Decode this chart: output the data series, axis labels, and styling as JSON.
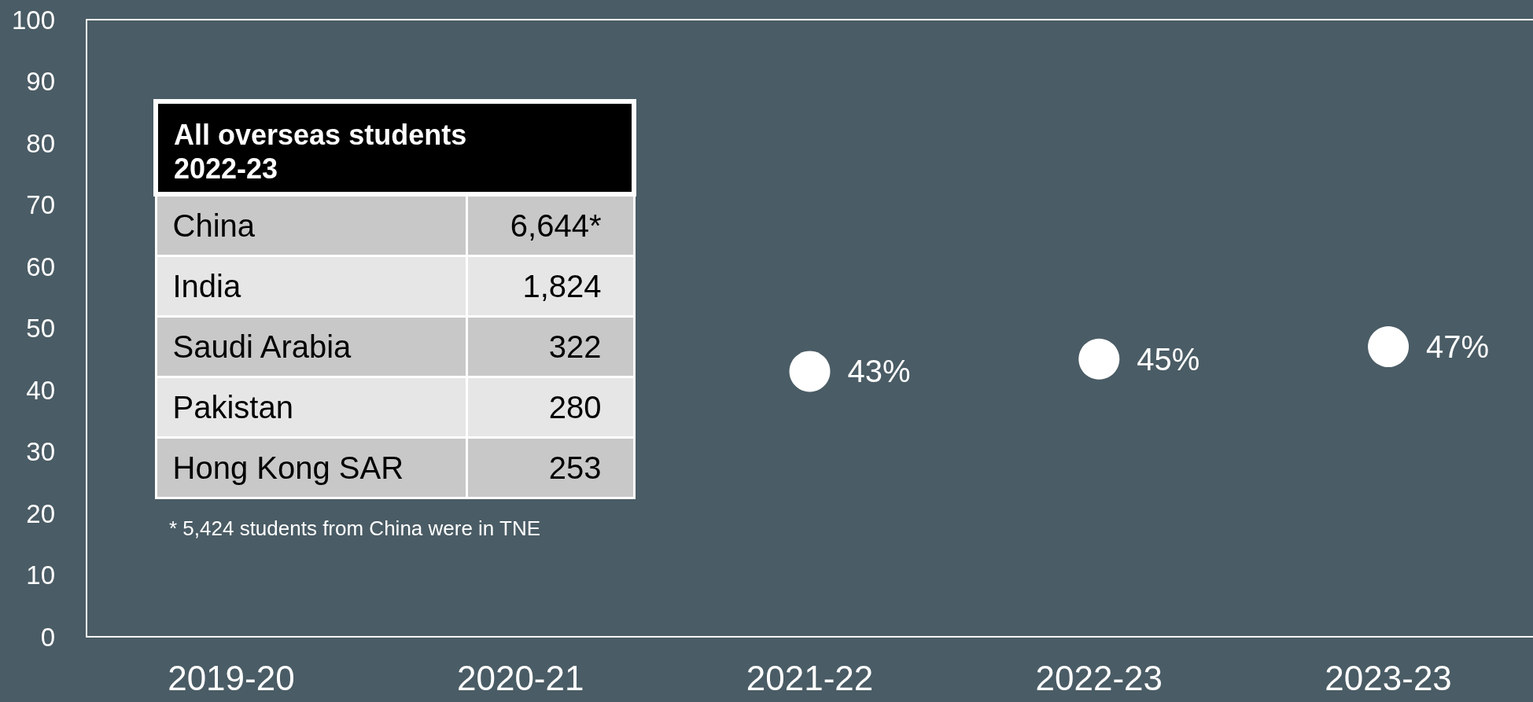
{
  "chart_data": [
    {
      "type": "scatter",
      "categories": [
        "2019-20",
        "2020-21",
        "2021-22",
        "2022-23",
        "2023-23"
      ],
      "series": [
        {
          "color": "#ffffff",
          "values": [
            null,
            null,
            43,
            45,
            47
          ],
          "value_labels": [
            null,
            null,
            "43%",
            "45%",
            "47%"
          ]
        }
      ],
      "ylim": [
        0,
        100
      ],
      "yticks": [
        0,
        10,
        20,
        30,
        40,
        50,
        60,
        70,
        80,
        90,
        100
      ],
      "grid": false,
      "marker": "circle"
    },
    {
      "type": "other",
      "title": "All overseas students 2022-23",
      "categories": [
        "China",
        "India",
        "Saudi Arabia",
        "Pakistan",
        "Hong Kong SAR"
      ],
      "value_labels": [
        "6,644*",
        "1,824",
        "322",
        "280",
        "253"
      ],
      "annotations": [
        "* 5,424 students from China were in TNE"
      ]
    }
  ]
}
